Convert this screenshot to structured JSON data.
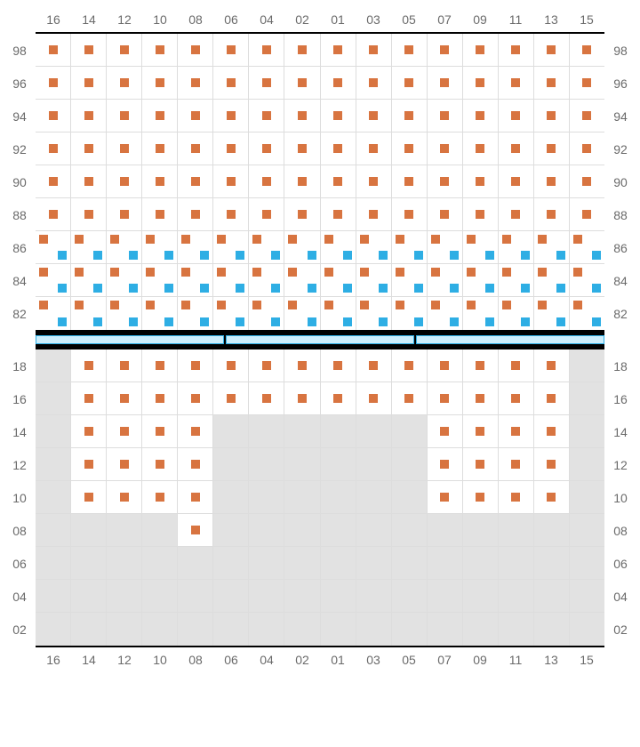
{
  "colors": {
    "available_marker": "#d87440",
    "secondary_marker": "#2eaee4",
    "unavailable_bg": "#e2e2e2",
    "grid_line": "#dddddd",
    "frame": "#000000",
    "label": "#6a6a6a",
    "divider_fill": "#cdeefc",
    "divider_border": "#2eaee4"
  },
  "columns": [
    "16",
    "14",
    "12",
    "10",
    "08",
    "06",
    "04",
    "02",
    "01",
    "03",
    "05",
    "07",
    "09",
    "11",
    "13",
    "15"
  ],
  "upper": {
    "rows": [
      "98",
      "96",
      "94",
      "92",
      "90",
      "88",
      "86",
      "84",
      "82"
    ],
    "cells": {
      "98": {
        "type": "single",
        "cols": [
          "16",
          "14",
          "12",
          "10",
          "08",
          "06",
          "04",
          "02",
          "01",
          "03",
          "05",
          "07",
          "09",
          "11",
          "13",
          "15"
        ]
      },
      "96": {
        "type": "single",
        "cols": [
          "16",
          "14",
          "12",
          "10",
          "08",
          "06",
          "04",
          "02",
          "01",
          "03",
          "05",
          "07",
          "09",
          "11",
          "13",
          "15"
        ]
      },
      "94": {
        "type": "single",
        "cols": [
          "16",
          "14",
          "12",
          "10",
          "08",
          "06",
          "04",
          "02",
          "01",
          "03",
          "05",
          "07",
          "09",
          "11",
          "13",
          "15"
        ]
      },
      "92": {
        "type": "single",
        "cols": [
          "16",
          "14",
          "12",
          "10",
          "08",
          "06",
          "04",
          "02",
          "01",
          "03",
          "05",
          "07",
          "09",
          "11",
          "13",
          "15"
        ]
      },
      "90": {
        "type": "single",
        "cols": [
          "16",
          "14",
          "12",
          "10",
          "08",
          "06",
          "04",
          "02",
          "01",
          "03",
          "05",
          "07",
          "09",
          "11",
          "13",
          "15"
        ]
      },
      "88": {
        "type": "single",
        "cols": [
          "16",
          "14",
          "12",
          "10",
          "08",
          "06",
          "04",
          "02",
          "01",
          "03",
          "05",
          "07",
          "09",
          "11",
          "13",
          "15"
        ]
      },
      "86": {
        "type": "double",
        "cols": [
          "16",
          "14",
          "12",
          "10",
          "08",
          "06",
          "04",
          "02",
          "01",
          "03",
          "05",
          "07",
          "09",
          "11",
          "13",
          "15"
        ]
      },
      "84": {
        "type": "double",
        "cols": [
          "16",
          "14",
          "12",
          "10",
          "08",
          "06",
          "04",
          "02",
          "01",
          "03",
          "05",
          "07",
          "09",
          "11",
          "13",
          "15"
        ]
      },
      "82": {
        "type": "double",
        "cols": [
          "16",
          "14",
          "12",
          "10",
          "08",
          "06",
          "04",
          "02",
          "01",
          "03",
          "05",
          "07",
          "09",
          "11",
          "13",
          "15"
        ]
      }
    }
  },
  "divider_segments": 3,
  "lower": {
    "rows": [
      "18",
      "16",
      "14",
      "12",
      "10",
      "08",
      "06",
      "04",
      "02"
    ],
    "available": {
      "18": [
        "14",
        "12",
        "10",
        "08",
        "06",
        "04",
        "02",
        "01",
        "03",
        "05",
        "07",
        "09",
        "11",
        "13"
      ],
      "16": [
        "14",
        "12",
        "10",
        "08",
        "06",
        "04",
        "02",
        "01",
        "03",
        "05",
        "07",
        "09",
        "11",
        "13"
      ],
      "14": [
        "14",
        "12",
        "10",
        "08",
        "07",
        "09",
        "11",
        "13"
      ],
      "12": [
        "14",
        "12",
        "10",
        "08",
        "07",
        "09",
        "11",
        "13"
      ],
      "10": [
        "14",
        "12",
        "10",
        "08",
        "07",
        "09",
        "11",
        "13"
      ],
      "08": [
        "08"
      ],
      "06": [],
      "04": [],
      "02": []
    },
    "whitecells": {
      "18": [
        "14",
        "12",
        "10",
        "08",
        "06",
        "04",
        "02",
        "01",
        "03",
        "05",
        "07",
        "09",
        "11",
        "13"
      ],
      "16": [
        "14",
        "12",
        "10",
        "08",
        "06",
        "04",
        "02",
        "01",
        "03",
        "05",
        "07",
        "09",
        "11",
        "13"
      ],
      "14": [
        "14",
        "12",
        "10",
        "08",
        "07",
        "09",
        "11",
        "13"
      ],
      "12": [
        "14",
        "12",
        "10",
        "08",
        "07",
        "09",
        "11",
        "13"
      ],
      "10": [
        "14",
        "12",
        "10",
        "08",
        "07",
        "09",
        "11",
        "13"
      ],
      "08": [
        "08"
      ],
      "06": [],
      "04": [],
      "02": []
    }
  }
}
